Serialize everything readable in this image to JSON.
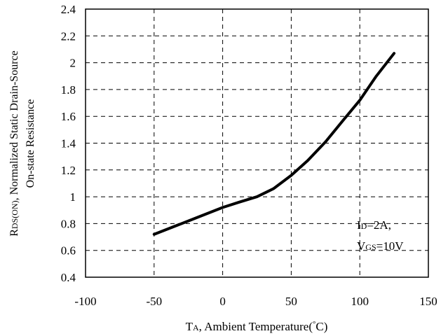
{
  "chart_data": {
    "type": "line",
    "xlim": [
      -100,
      150
    ],
    "ylim": [
      0.4,
      2.4
    ],
    "x_ticks": [
      -100,
      -50,
      0,
      50,
      100,
      150
    ],
    "y_ticks": [
      0.4,
      0.6,
      0.8,
      1,
      1.2,
      1.4,
      1.6,
      1.8,
      2,
      2.2,
      2.4
    ],
    "x_tick_labels": [
      "-100",
      "-50",
      "0",
      "50",
      "100",
      "150"
    ],
    "y_tick_labels": [
      "0.4",
      "0.6",
      "0.8",
      "1",
      "1.2",
      "1.4",
      "1.6",
      "1.8",
      "2",
      "2.2",
      "2.4"
    ],
    "grid": true,
    "grid_style": "dashed",
    "xlabel": {
      "sym_main": "T",
      "sym_sub": "A",
      "rest": ", Ambient Temperature(",
      "degree": "°",
      "unit": "C)"
    },
    "ylabel": {
      "line1_main": "R",
      "line1_sub": "DS(ON)",
      "line1_rest": ", Normalized Static Drain-Source",
      "line2": "On-state Resistance"
    },
    "annotations": {
      "line1_main": "I",
      "line1_sub": "D",
      "line1_rest": "=2A,",
      "line2_main": "V",
      "line2_sub": "GS",
      "line2_rest": "=10V"
    },
    "series": [
      {
        "color": "#000000",
        "x": [
          -50,
          -25,
          0,
          12,
          25,
          37,
          50,
          62,
          75,
          87,
          100,
          112,
          125
        ],
        "y": [
          0.72,
          0.82,
          0.92,
          0.96,
          1.0,
          1.06,
          1.16,
          1.27,
          1.41,
          1.56,
          1.72,
          1.9,
          2.07
        ]
      }
    ]
  }
}
